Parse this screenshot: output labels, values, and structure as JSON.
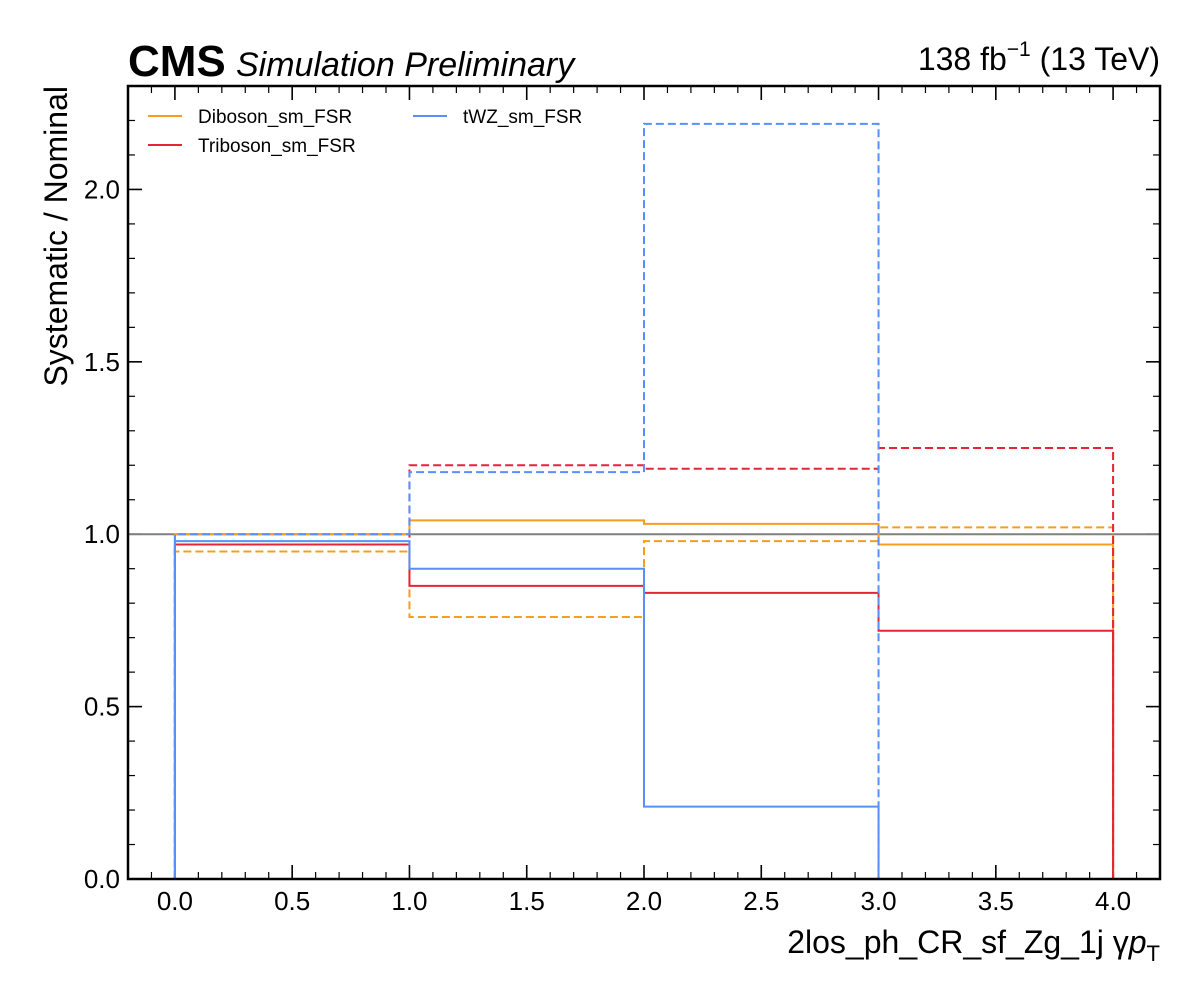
{
  "header": {
    "experiment": "CMS",
    "extra": "Simulation Preliminary",
    "lumi_prefix": "138 fb",
    "lumi_sup": "−1",
    "lumi_suffix": " (13 TeV)"
  },
  "chart_data": {
    "type": "line",
    "drawstyle": "steps",
    "xlabel": "2los_ph_CR_sf_Zg_1j   γ",
    "xlabel_math_p": "p",
    "xlabel_math_sub": "T",
    "ylabel": "Systematic / Nominal",
    "xlim": [
      -0.2,
      4.2
    ],
    "ylim": [
      0.0,
      2.3
    ],
    "xticks": [
      0.0,
      0.5,
      1.0,
      1.5,
      2.0,
      2.5,
      3.0,
      3.5,
      4.0
    ],
    "xtick_labels": [
      "0.0",
      "0.5",
      "1.0",
      "1.5",
      "2.0",
      "2.5",
      "3.0",
      "3.5",
      "4.0"
    ],
    "yticks": [
      0.0,
      0.5,
      1.0,
      1.5,
      2.0
    ],
    "ytick_labels": [
      "0.0",
      "0.5",
      "1.0",
      "1.5",
      "2.0"
    ],
    "bin_edges": [
      0,
      1,
      2,
      3,
      4
    ],
    "reference_line": {
      "y": 1.0,
      "color": "#808080"
    },
    "legend": {
      "placement": "top-left",
      "columns": 2
    },
    "series": [
      {
        "name": "Diboson_sm_FSR",
        "variant": "up",
        "style": "solid",
        "color": "#f89c20",
        "values": [
          1.0,
          1.04,
          1.03,
          0.97
        ]
      },
      {
        "name": "Diboson_sm_FSR",
        "variant": "down",
        "style": "dashed",
        "color": "#f89c20",
        "values": [
          0.95,
          0.76,
          0.98,
          1.02
        ]
      },
      {
        "name": "Triboson_sm_FSR",
        "variant": "up",
        "style": "solid",
        "color": "#e42536",
        "values": [
          0.97,
          0.85,
          0.83,
          0.72
        ]
      },
      {
        "name": "Triboson_sm_FSR",
        "variant": "down",
        "style": "dashed",
        "color": "#e42536",
        "values": [
          0.97,
          1.2,
          1.19,
          1.25
        ]
      },
      {
        "name": "tWZ_sm_FSR",
        "variant": "up",
        "style": "solid",
        "color": "#5790fc",
        "values": [
          0.98,
          0.9,
          0.21,
          0.0
        ]
      },
      {
        "name": "tWZ_sm_FSR",
        "variant": "down",
        "style": "dashed",
        "color": "#5790fc",
        "values": [
          1.0,
          1.18,
          2.19,
          0.0
        ]
      }
    ]
  }
}
